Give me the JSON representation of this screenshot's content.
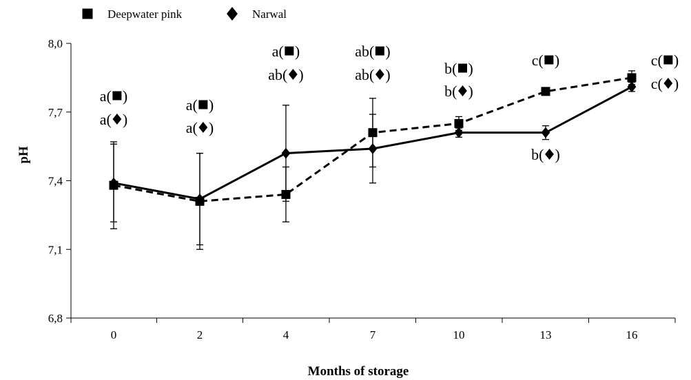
{
  "chart_data": {
    "type": "line",
    "xlabel": "Months of storage",
    "ylabel": "pH",
    "categories": [
      "0",
      "2",
      "4",
      "7",
      "10",
      "13",
      "16"
    ],
    "y_ticks": [
      "6,8",
      "7,1",
      "7,4",
      "7,7",
      "8,0"
    ],
    "ylim": [
      6.8,
      8.0
    ],
    "grid": false,
    "legend_position": "top-left",
    "series": [
      {
        "name": "Deepwater pink",
        "marker": "square",
        "line_style": "dashed",
        "color": "#000000",
        "values": [
          7.38,
          7.31,
          7.34,
          7.61,
          7.65,
          7.79,
          7.85
        ],
        "error": [
          0.19,
          0.21,
          0.12,
          0.15,
          0.03,
          0.01,
          0.03
        ]
      },
      {
        "name": "Narwal",
        "marker": "diamond",
        "line_style": "solid",
        "color": "#000000",
        "values": [
          7.39,
          7.32,
          7.52,
          7.54,
          7.61,
          7.61,
          7.81
        ],
        "error": [
          0.17,
          0.2,
          0.21,
          0.15,
          0.02,
          0.03,
          0.02
        ]
      }
    ],
    "annotations": [
      {
        "x": "0",
        "lines": [
          [
            "a",
            "square"
          ],
          [
            "a",
            "diamond"
          ]
        ]
      },
      {
        "x": "2",
        "lines": [
          [
            "a",
            "square"
          ],
          [
            "a",
            "diamond"
          ]
        ]
      },
      {
        "x": "4",
        "lines": [
          [
            "a",
            "square"
          ],
          [
            "ab",
            "diamond"
          ]
        ]
      },
      {
        "x": "7",
        "lines": [
          [
            "ab",
            "square"
          ],
          [
            "ab",
            "diamond"
          ]
        ]
      },
      {
        "x": "10",
        "lines": [
          [
            "b",
            "square"
          ],
          [
            "b",
            "diamond"
          ]
        ]
      },
      {
        "x": "13",
        "lines": [
          [
            "c",
            "square"
          ]
        ]
      },
      {
        "x": "13",
        "position": "below",
        "lines": [
          [
            "b",
            "diamond"
          ]
        ]
      },
      {
        "x": "16",
        "position": "right",
        "lines": [
          [
            "c",
            "square"
          ],
          [
            "c",
            "diamond"
          ]
        ]
      }
    ]
  }
}
